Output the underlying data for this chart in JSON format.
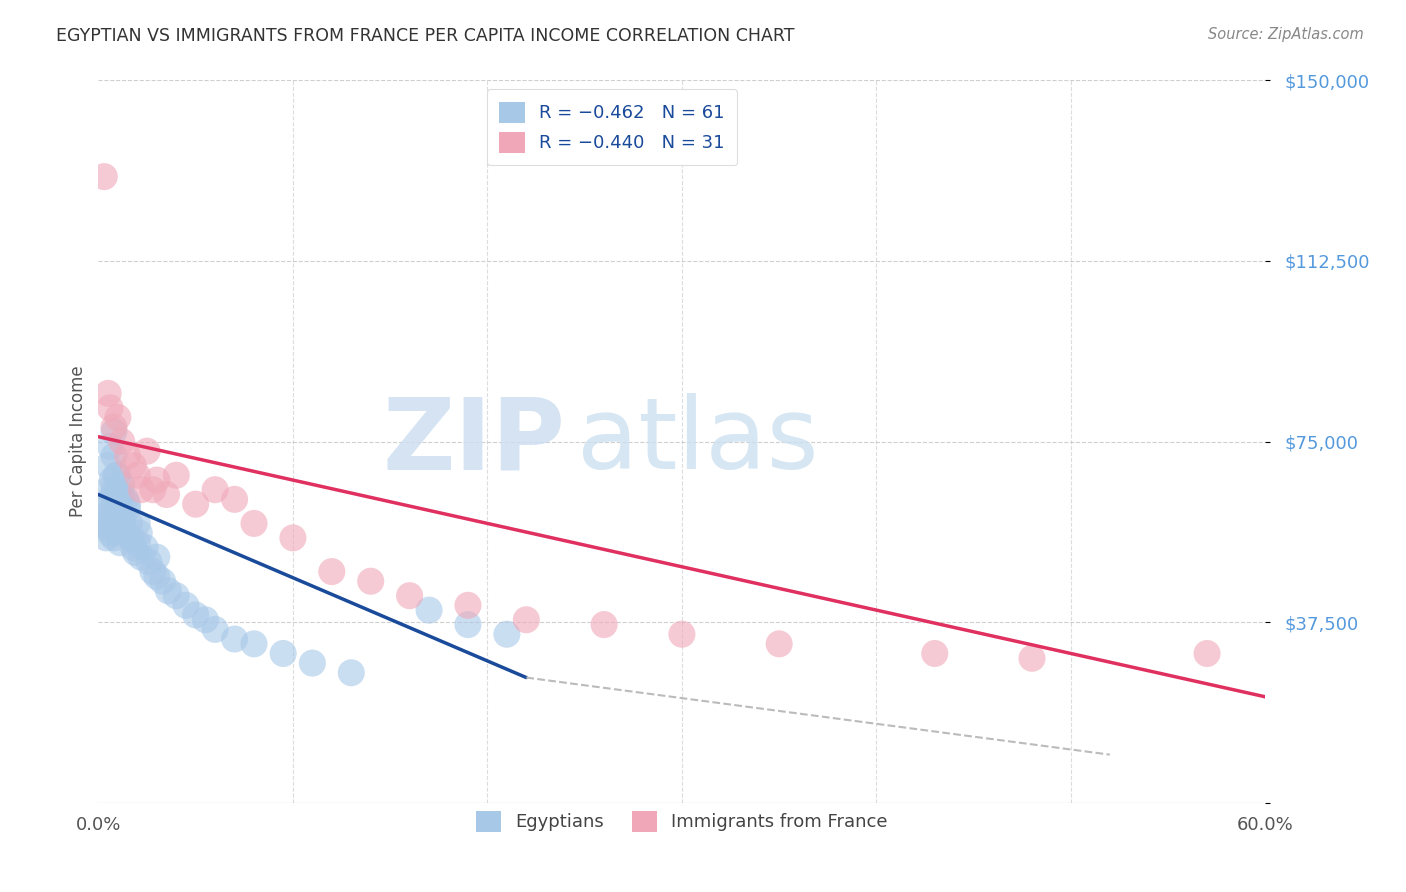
{
  "title": "EGYPTIAN VS IMMIGRANTS FROM FRANCE PER CAPITA INCOME CORRELATION CHART",
  "source": "Source: ZipAtlas.com",
  "ylabel": "Per Capita Income",
  "xlim": [
    0.0,
    0.6
  ],
  "ylim": [
    0,
    150000
  ],
  "yticks": [
    0,
    37500,
    75000,
    112500,
    150000
  ],
  "ytick_labels": [
    "",
    "$37,500",
    "$75,000",
    "$112,500",
    "$150,000"
  ],
  "xticks": [
    0.0,
    0.1,
    0.2,
    0.3,
    0.4,
    0.5,
    0.6
  ],
  "xtick_labels_show": [
    "0.0%",
    "60.0%"
  ],
  "legend_labels": [
    "Egyptians",
    "Immigrants from France"
  ],
  "blue_color": "#a8c8e8",
  "pink_color": "#f0a8b8",
  "blue_line_color": "#1a4a9a",
  "pink_line_color": "#e03060",
  "background_color": "#ffffff",
  "grid_color": "#bbbbbb",
  "title_color": "#333333",
  "axis_label_color": "#555555",
  "ytick_label_color": "#5599dd",
  "source_color": "#888888",
  "blue_scatter_x": [
    0.003,
    0.004,
    0.004,
    0.005,
    0.005,
    0.005,
    0.006,
    0.006,
    0.006,
    0.007,
    0.007,
    0.007,
    0.008,
    0.008,
    0.008,
    0.009,
    0.009,
    0.01,
    0.01,
    0.01,
    0.011,
    0.011,
    0.012,
    0.012,
    0.013,
    0.014,
    0.015,
    0.016,
    0.017,
    0.018,
    0.019,
    0.02,
    0.021,
    0.022,
    0.024,
    0.026,
    0.028,
    0.03,
    0.033,
    0.036,
    0.04,
    0.045,
    0.05,
    0.055,
    0.06,
    0.07,
    0.08,
    0.095,
    0.11,
    0.13,
    0.005,
    0.006,
    0.008,
    0.01,
    0.012,
    0.015,
    0.02,
    0.03,
    0.17,
    0.19,
    0.21
  ],
  "blue_scatter_y": [
    58000,
    62000,
    55000,
    65000,
    60000,
    57000,
    63000,
    58000,
    56000,
    67000,
    61000,
    59000,
    72000,
    65000,
    55000,
    68000,
    60000,
    64000,
    58000,
    56000,
    62000,
    54000,
    66000,
    59000,
    57000,
    63000,
    61000,
    58000,
    55000,
    53000,
    52000,
    54000,
    56000,
    51000,
    53000,
    50000,
    48000,
    47000,
    46000,
    44000,
    43000,
    41000,
    39000,
    38000,
    36000,
    34000,
    33000,
    31000,
    29000,
    27000,
    70000,
    74000,
    77000,
    68000,
    64000,
    62000,
    58000,
    51000,
    40000,
    37000,
    35000
  ],
  "pink_scatter_x": [
    0.003,
    0.005,
    0.006,
    0.008,
    0.01,
    0.012,
    0.015,
    0.018,
    0.02,
    0.022,
    0.025,
    0.03,
    0.035,
    0.04,
    0.05,
    0.06,
    0.07,
    0.08,
    0.1,
    0.12,
    0.14,
    0.16,
    0.19,
    0.22,
    0.26,
    0.3,
    0.35,
    0.43,
    0.48,
    0.57,
    0.028
  ],
  "pink_scatter_y": [
    130000,
    85000,
    82000,
    78000,
    80000,
    75000,
    72000,
    70000,
    68000,
    65000,
    73000,
    67000,
    64000,
    68000,
    62000,
    65000,
    63000,
    58000,
    55000,
    48000,
    46000,
    43000,
    41000,
    38000,
    37000,
    35000,
    33000,
    31000,
    30000,
    31000,
    65000
  ],
  "blue_line_x": [
    0.0,
    0.22
  ],
  "blue_line_y": [
    64000,
    26000
  ],
  "pink_line_x": [
    0.0,
    0.6
  ],
  "pink_line_y": [
    76000,
    22000
  ],
  "dashed_line_x": [
    0.22,
    0.52
  ],
  "dashed_line_y": [
    26000,
    10000
  ]
}
